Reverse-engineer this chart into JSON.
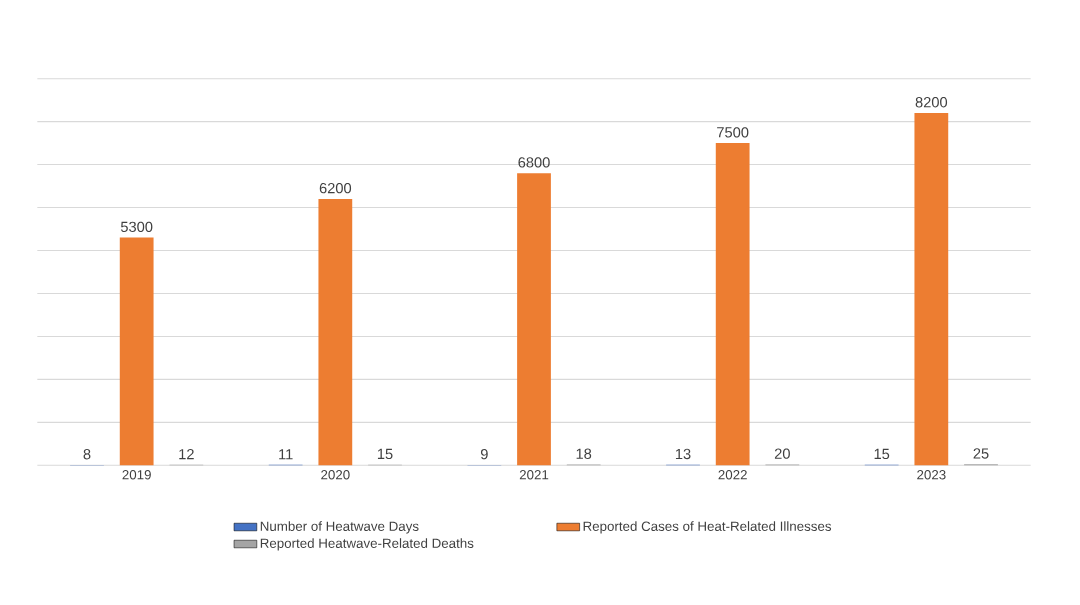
{
  "chart_data": {
    "type": "bar",
    "categories": [
      "2019",
      "2020",
      "2021",
      "2022",
      "2023"
    ],
    "series": [
      {
        "name": "Number of Heatwave Days",
        "color": "#4472c4",
        "values": [
          8,
          11,
          9,
          13,
          15
        ]
      },
      {
        "name": "Reported Cases of Heat-Related Illnesses",
        "color": "#ed7d31",
        "values": [
          5300,
          6200,
          6800,
          7500,
          8200
        ]
      },
      {
        "name": "Reported Heatwave-Related Deaths",
        "color": "#a5a5a5",
        "values": [
          12,
          15,
          18,
          20,
          25
        ]
      }
    ],
    "ylim": [
      0,
      9000
    ],
    "yticks": [
      {
        "value": 0,
        "label": null
      },
      {
        "value": 1000,
        "label": null
      },
      {
        "value": 2000,
        "label": null
      },
      {
        "value": 3000,
        "label": null
      },
      {
        "value": 4000,
        "label": null
      },
      {
        "value": 5000,
        "label": null
      },
      {
        "value": 6000,
        "label": null
      },
      {
        "value": 7000,
        "label": null
      },
      {
        "value": 8000,
        "label": null
      },
      {
        "value": 9000,
        "label": null
      }
    ],
    "grid": "y",
    "data_labels": true,
    "legend": "bottom"
  }
}
